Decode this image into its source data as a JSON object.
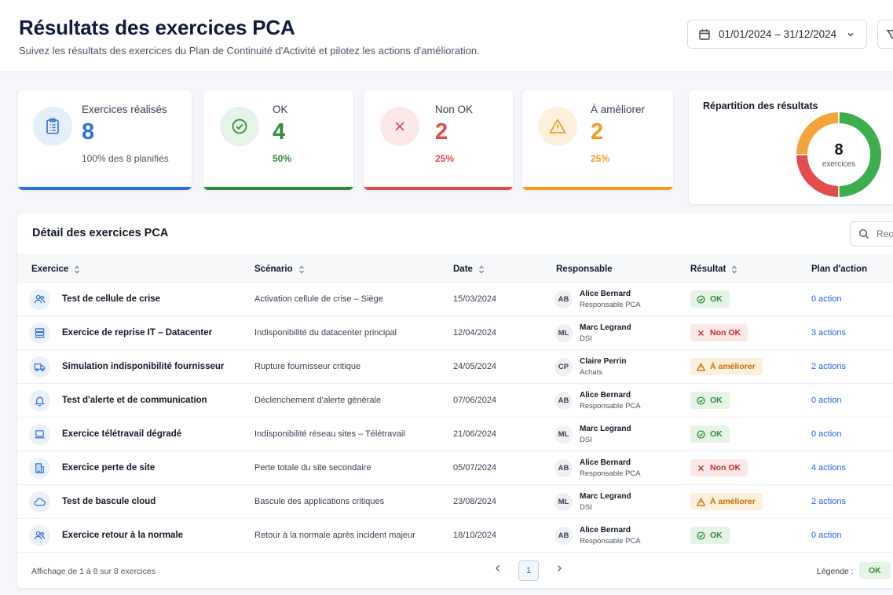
{
  "header": {
    "title": "Résultats des exercices PCA",
    "subtitle": "Suivez les résultats des exercices du Plan de Continuité d'Activité et pilotez les actions d'amélioration.",
    "date_range": "01/01/2024 – 31/12/2024"
  },
  "icons": {
    "date": "calendar-icon",
    "filter": "filter-icon",
    "search": "search-icon"
  },
  "kpis": [
    {
      "label": "Exercices réalisés",
      "value": "8",
      "sub": "100% des 8 planifiés",
      "color": "#2f6fd8",
      "icon": "clipboard-icon"
    },
    {
      "label": "OK",
      "value": "4",
      "sub": "50%",
      "color": "#2f8a3a",
      "icon": "check-circle-icon"
    },
    {
      "label": "Non OK",
      "value": "2",
      "sub": "25%",
      "color": "#e24c4c",
      "icon": "x-icon"
    },
    {
      "label": "À améliorer",
      "value": "2",
      "sub": "25%",
      "color": "#f39a1e",
      "icon": "warning-icon"
    }
  ],
  "donut": {
    "title": "Répartition des résultats",
    "total": "8",
    "total_label": "exercices",
    "segments": [
      {
        "label": "OK",
        "value": 4,
        "color": "#3cae4e"
      },
      {
        "label": "Non OK",
        "value": 2,
        "color": "#e24c4c"
      },
      {
        "label": "À améliorer",
        "value": 2,
        "color": "#f4a53a"
      }
    ]
  },
  "table": {
    "title": "Détail des exercices PCA",
    "search_placeholder": "Rech",
    "columns": [
      "Exercice",
      "Scénario",
      "Date",
      "Responsable",
      "Résultat",
      "Plan d'action"
    ],
    "rows": [
      {
        "icon": "users-icon",
        "name": "Test de cellule de crise",
        "scenario": "Activation cellule de crise – Siège",
        "date": "15/03/2024",
        "initials": "AB",
        "resp": "Alice Bernard",
        "role": "Responsable PCA",
        "result": "OK",
        "status": "ok",
        "action": "0 action"
      },
      {
        "icon": "server-icon",
        "name": "Exercice de reprise IT – Datacenter",
        "scenario": "Indisponibilité du datacenter principal",
        "date": "12/04/2024",
        "initials": "ML",
        "resp": "Marc Legrand",
        "role": "DSI",
        "result": "Non OK",
        "status": "nok",
        "action": "3 actions"
      },
      {
        "icon": "truck-icon",
        "name": "Simulation indisponibilité fournisseur",
        "scenario": "Rupture fournisseur critique",
        "date": "24/05/2024",
        "initials": "CP",
        "resp": "Claire Perrin",
        "role": "Achats",
        "result": "À améliorer",
        "status": "warn",
        "action": "2 actions"
      },
      {
        "icon": "bell-icon",
        "name": "Test d'alerte et de communication",
        "scenario": "Déclenchement d'alerte générale",
        "date": "07/06/2024",
        "initials": "AB",
        "resp": "Alice Bernard",
        "role": "Responsable PCA",
        "result": "OK",
        "status": "ok",
        "action": "0 action"
      },
      {
        "icon": "laptop-icon",
        "name": "Exercice télétravail dégradé",
        "scenario": "Indisponibilité réseau sites – Télétravail",
        "date": "21/06/2024",
        "initials": "ML",
        "resp": "Marc Legrand",
        "role": "DSI",
        "result": "OK",
        "status": "ok",
        "action": "0 action"
      },
      {
        "icon": "building-icon",
        "name": "Exercice perte de site",
        "scenario": "Perte totale du site secondaire",
        "date": "05/07/2024",
        "initials": "AB",
        "resp": "Alice Bernard",
        "role": "Responsable PCA",
        "result": "Non OK",
        "status": "nok",
        "action": "4 actions"
      },
      {
        "icon": "cloud-icon",
        "name": "Test de bascule cloud",
        "scenario": "Bascule des applications critiques",
        "date": "23/08/2024",
        "initials": "ML",
        "resp": "Marc Legrand",
        "role": "DSI",
        "result": "À améliorer",
        "status": "warn",
        "action": "2 actions"
      },
      {
        "icon": "users-icon",
        "name": "Exercice retour à la normale",
        "scenario": "Retour à la normale après incident majeur",
        "date": "18/10/2024",
        "initials": "AB",
        "resp": "Alice Bernard",
        "role": "Responsable PCA",
        "result": "OK",
        "status": "ok",
        "action": "0 action"
      }
    ],
    "footer": {
      "info": "Affichage de 1 à 8 sur 8 exercices",
      "page": "1",
      "legend_label": "Légende :",
      "legend_ok": "OK"
    }
  },
  "status_colors": {
    "ok": {
      "bg": "#e5f4e7",
      "fg": "#2f8a3a"
    },
    "nok": {
      "bg": "#fde8e8",
      "fg": "#c62828"
    },
    "warn": {
      "bg": "#fdf0dc",
      "fg": "#c96d00"
    }
  }
}
